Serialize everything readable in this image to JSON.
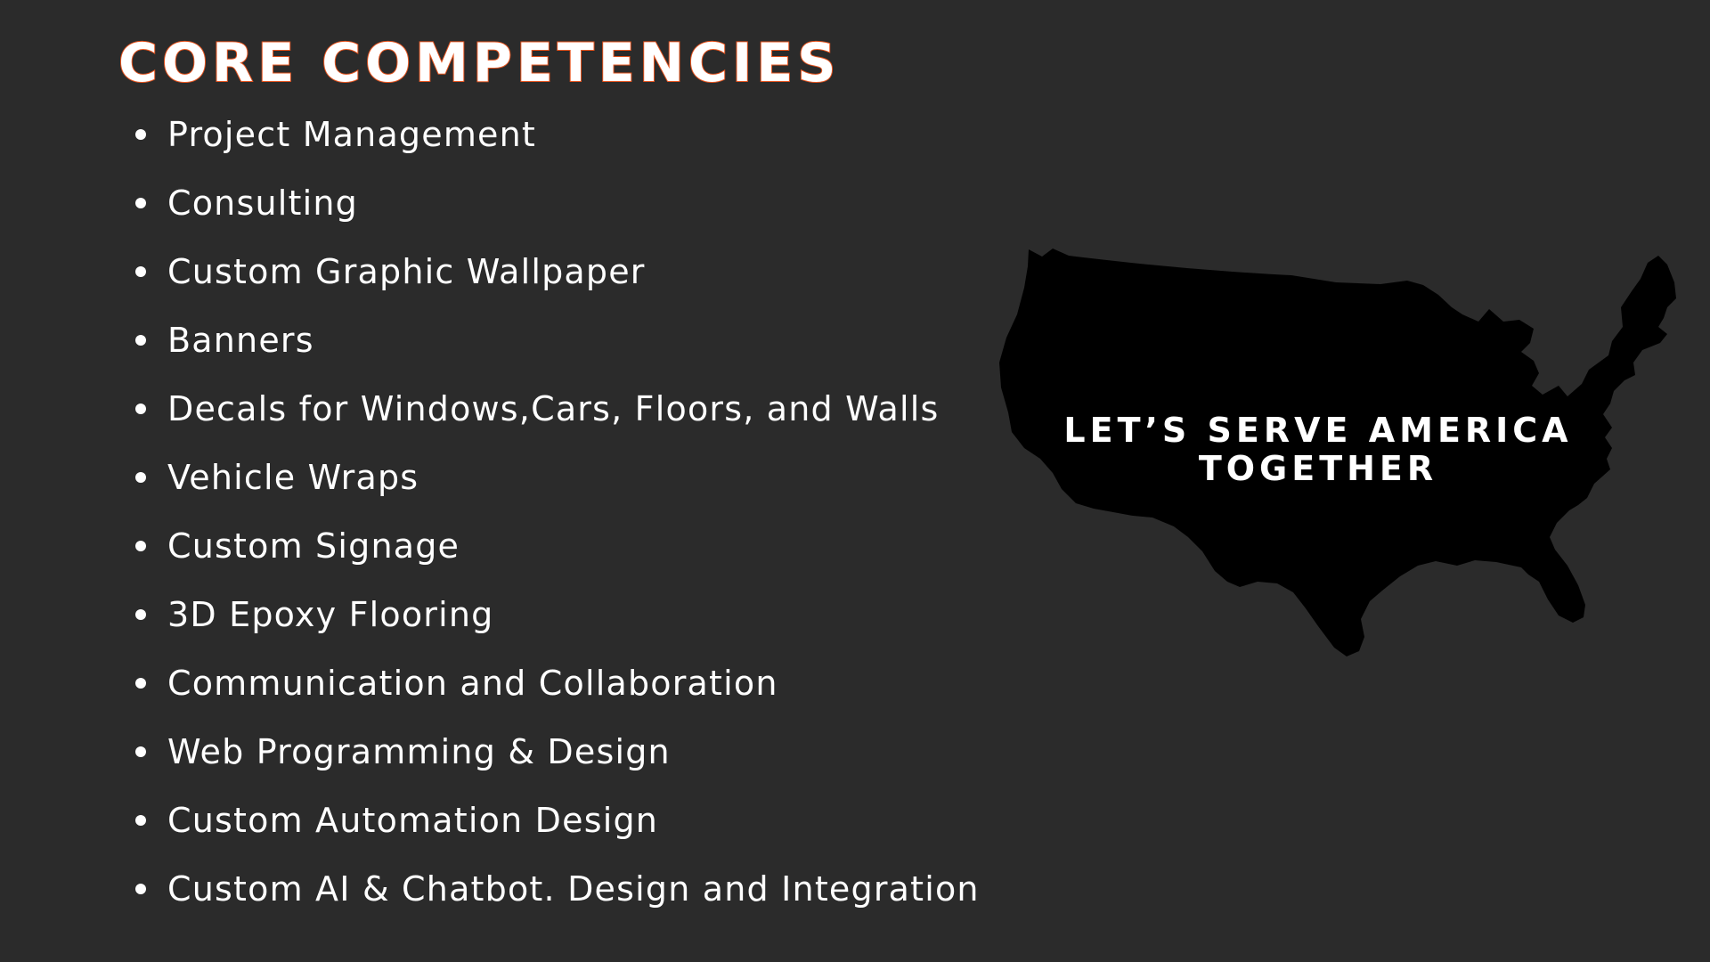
{
  "title": "CORE COMPETENCIES",
  "competencies": [
    "Project Management",
    "Consulting",
    "Custom Graphic Wallpaper",
    "Banners",
    "Decals for Windows,Cars, Floors, and Walls",
    "Vehicle Wraps",
    "Custom Signage",
    "3D Epoxy Flooring",
    "Communication and Collaboration",
    "Web Programming & Design",
    "Custom Automation Design",
    "Custom AI & Chatbot. Design and Integration"
  ],
  "map": {
    "icon": "usa-map-icon",
    "line1": "LET’S SERVE AMERICA",
    "line2": "TOGETHER"
  },
  "colors": {
    "background": "#2b2b2b",
    "text": "#ffffff",
    "title_outline": "#e5541f",
    "map_fill": "#000000"
  }
}
